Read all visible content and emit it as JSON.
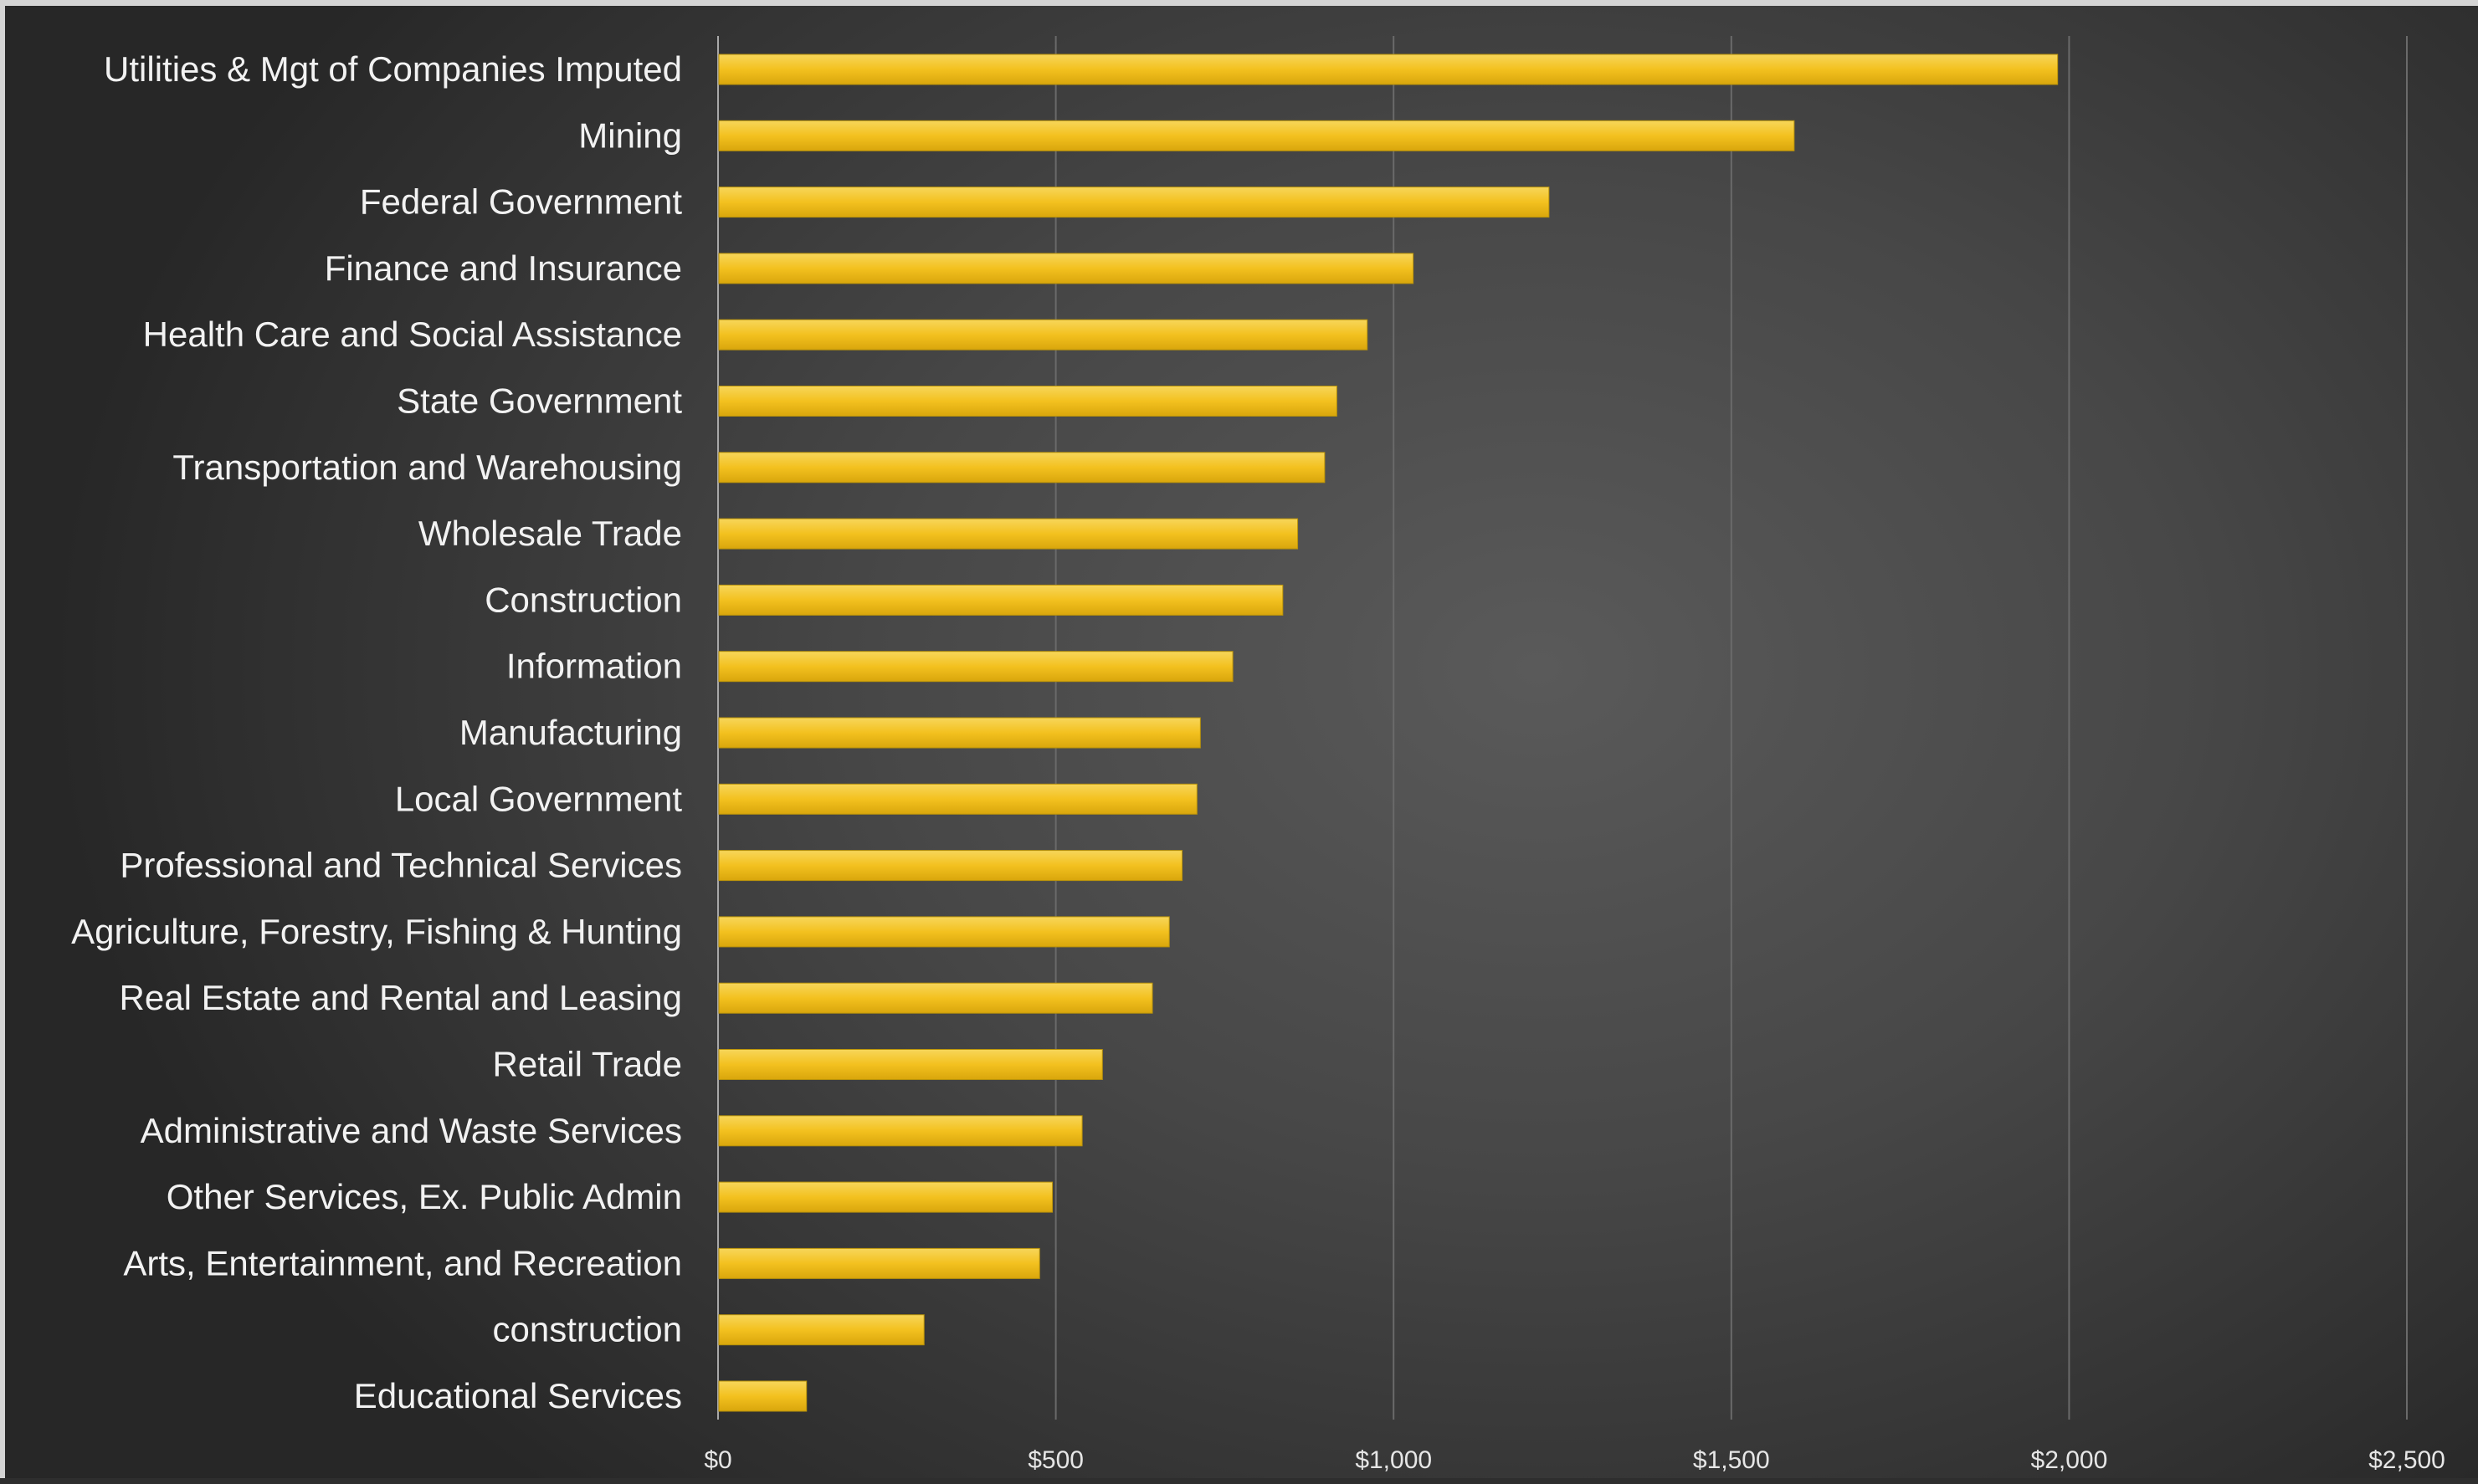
{
  "chart_data": {
    "type": "bar",
    "orientation": "horizontal",
    "title": "",
    "xlabel": "",
    "ylabel": "",
    "categories": [
      "Utilities & Mgt of Companies Imputed",
      "Mining",
      "Federal Government",
      "Finance and Insurance",
      "Health Care and Social Assistance",
      "State Government",
      "Transportation and Warehousing",
      "Wholesale Trade",
      "Construction",
      "Information",
      "Manufacturing",
      "Local Government",
      "Professional and Technical Services",
      "Agriculture, Forestry, Fishing & Hunting",
      "Real Estate and Rental and Leasing",
      "Retail Trade",
      "Administrative and Waste Services",
      "Other Services, Ex. Public Admin",
      "Arts, Entertainment, and Recreation",
      "construction",
      "Educational Services"
    ],
    "values": [
      1983,
      1593,
      1230,
      1029,
      961,
      916,
      898,
      858,
      836,
      762,
      714,
      709,
      687,
      668,
      643,
      569,
      539,
      495,
      476,
      305,
      131
    ],
    "xlim": [
      0,
      2500
    ],
    "x_ticks": [
      {
        "value": 0,
        "label": "$0"
      },
      {
        "value": 500,
        "label": "$500"
      },
      {
        "value": 1000,
        "label": "$1,000"
      },
      {
        "value": 1500,
        "label": "$1,500"
      },
      {
        "value": 2000,
        "label": "$2,000"
      },
      {
        "value": 2500,
        "label": "$2,500"
      }
    ],
    "grid": true,
    "legend": "none",
    "bar_color": "#f3c11f",
    "background_color": "#474747",
    "text_color": "#f2f2f2"
  }
}
